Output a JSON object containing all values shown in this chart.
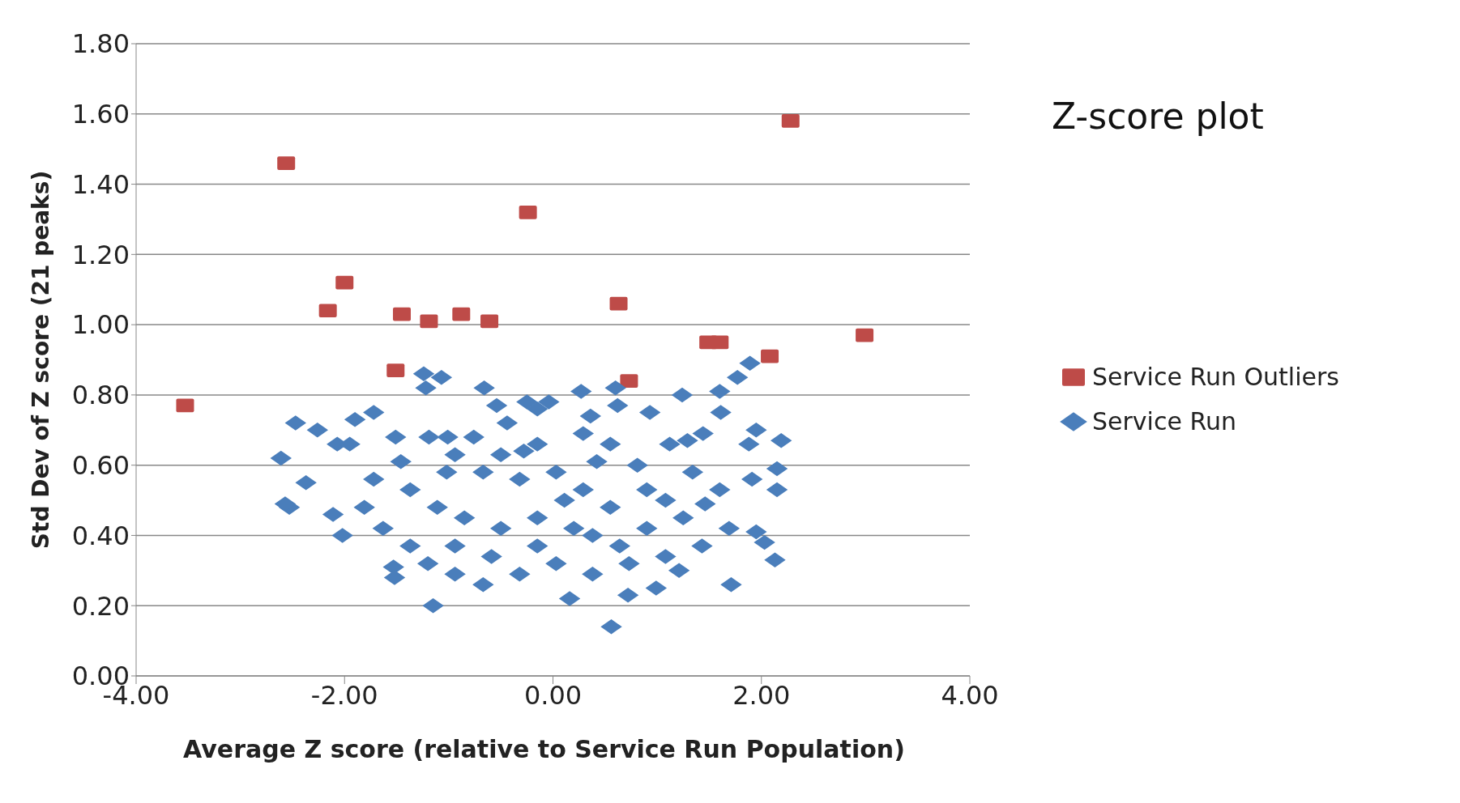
{
  "chart_data": {
    "type": "scatter",
    "title": "Z-score plot",
    "xlabel": "Average Z score (relative to Service Run Population)",
    "ylabel": "Std Dev of Z score (21 peaks)",
    "xlim": [
      -4,
      4
    ],
    "xticks": [
      {
        "value": -4,
        "label": "-4.00"
      },
      {
        "value": -2,
        "label": "-2.00"
      },
      {
        "value": 0,
        "label": "0.00"
      },
      {
        "value": 2,
        "label": "2.00"
      },
      {
        "value": 4,
        "label": "4.00"
      }
    ],
    "ylim": [
      0,
      1.8
    ],
    "yticks": [
      {
        "value": 0,
        "label": "0.00"
      },
      {
        "value": 0.2,
        "label": "0.20"
      },
      {
        "value": 0.4,
        "label": "0.40"
      },
      {
        "value": 0.6,
        "label": "0.60"
      },
      {
        "value": 0.8,
        "label": "0.80"
      },
      {
        "value": 1,
        "label": "1.00"
      },
      {
        "value": 1.2,
        "label": "1.20"
      },
      {
        "value": 1.4,
        "label": "1.40"
      },
      {
        "value": 1.6,
        "label": "1.60"
      },
      {
        "value": 1.8,
        "label": "1.80"
      }
    ],
    "grid": "y",
    "legend": "right",
    "series": [
      {
        "name": "Service Run Outliers",
        "color": "#be4b48",
        "marker": "square",
        "x": [
          -3.53,
          -2.56,
          -0.24,
          -2.0,
          -2.16,
          -1.45,
          -1.19,
          -0.88,
          -0.61,
          -1.51,
          0.63,
          0.73,
          1.49,
          1.6,
          2.08,
          2.99,
          2.28
        ],
        "values": [
          0.77,
          1.46,
          1.32,
          1.12,
          1.04,
          1.03,
          1.01,
          1.03,
          1.01,
          0.87,
          1.06,
          0.84,
          0.95,
          0.95,
          0.91,
          0.97,
          1.58
        ]
      },
      {
        "name": "Service Run",
        "color": "#4a7ebb",
        "marker": "diamond",
        "x": [
          -2.61,
          -2.47,
          -2.26,
          -2.37,
          -2.53,
          -2.57,
          -2.07,
          -1.95,
          -1.9,
          -1.72,
          -1.51,
          -2.02,
          -2.11,
          -1.53,
          -1.52,
          -1.15,
          -1.24,
          -1.07,
          -1.22,
          -0.66,
          -0.54,
          -0.25,
          -0.04,
          -0.15,
          -0.44,
          -0.28,
          -1.19,
          -1.01,
          -0.76,
          0.27,
          0.6,
          0.62,
          0.36,
          0.93,
          1.24,
          1.6,
          1.77,
          1.89,
          1.61,
          1.95,
          1.88,
          2.19,
          2.15,
          2.15,
          1.91,
          2.03,
          2.13,
          1.71,
          1.95,
          1.46,
          1.21,
          0.99,
          0.72,
          0.56,
          0.16,
          1.29,
          1.12,
          1.44,
          0.81,
          0.42,
          0.9,
          1.34,
          1.6,
          1.69,
          1.43,
          1.08,
          0.73,
          0.38,
          0.03,
          -0.32,
          -0.67,
          -0.94,
          -1.2,
          -1.37,
          -1.63,
          -1.81,
          -1.72,
          -1.37,
          -1.02,
          -0.67,
          -0.32,
          0.03,
          0.29,
          0.55,
          0.2,
          -0.15,
          -0.5,
          -0.85,
          -1.11,
          -0.94,
          -0.59,
          -0.15,
          0.38,
          0.9,
          1.25,
          1.08,
          0.64,
          0.11,
          -0.94,
          -1.46,
          0.55,
          0.29,
          -0.15,
          -0.5
        ],
        "values": [
          0.62,
          0.72,
          0.7,
          0.55,
          0.48,
          0.49,
          0.66,
          0.66,
          0.73,
          0.75,
          0.68,
          0.4,
          0.46,
          0.31,
          0.28,
          0.2,
          0.86,
          0.85,
          0.82,
          0.82,
          0.77,
          0.78,
          0.78,
          0.76,
          0.72,
          0.64,
          0.68,
          0.68,
          0.68,
          0.81,
          0.82,
          0.77,
          0.74,
          0.75,
          0.8,
          0.81,
          0.85,
          0.89,
          0.75,
          0.7,
          0.66,
          0.67,
          0.59,
          0.53,
          0.56,
          0.38,
          0.33,
          0.26,
          0.41,
          0.49,
          0.3,
          0.25,
          0.23,
          0.14,
          0.22,
          0.67,
          0.66,
          0.69,
          0.6,
          0.61,
          0.53,
          0.58,
          0.53,
          0.42,
          0.37,
          0.34,
          0.32,
          0.29,
          0.32,
          0.29,
          0.26,
          0.29,
          0.32,
          0.37,
          0.42,
          0.48,
          0.56,
          0.53,
          0.58,
          0.58,
          0.56,
          0.58,
          0.53,
          0.48,
          0.42,
          0.45,
          0.42,
          0.45,
          0.48,
          0.37,
          0.34,
          0.37,
          0.4,
          0.42,
          0.45,
          0.5,
          0.37,
          0.5,
          0.63,
          0.61,
          0.66,
          0.69,
          0.66,
          0.63
        ]
      }
    ]
  }
}
